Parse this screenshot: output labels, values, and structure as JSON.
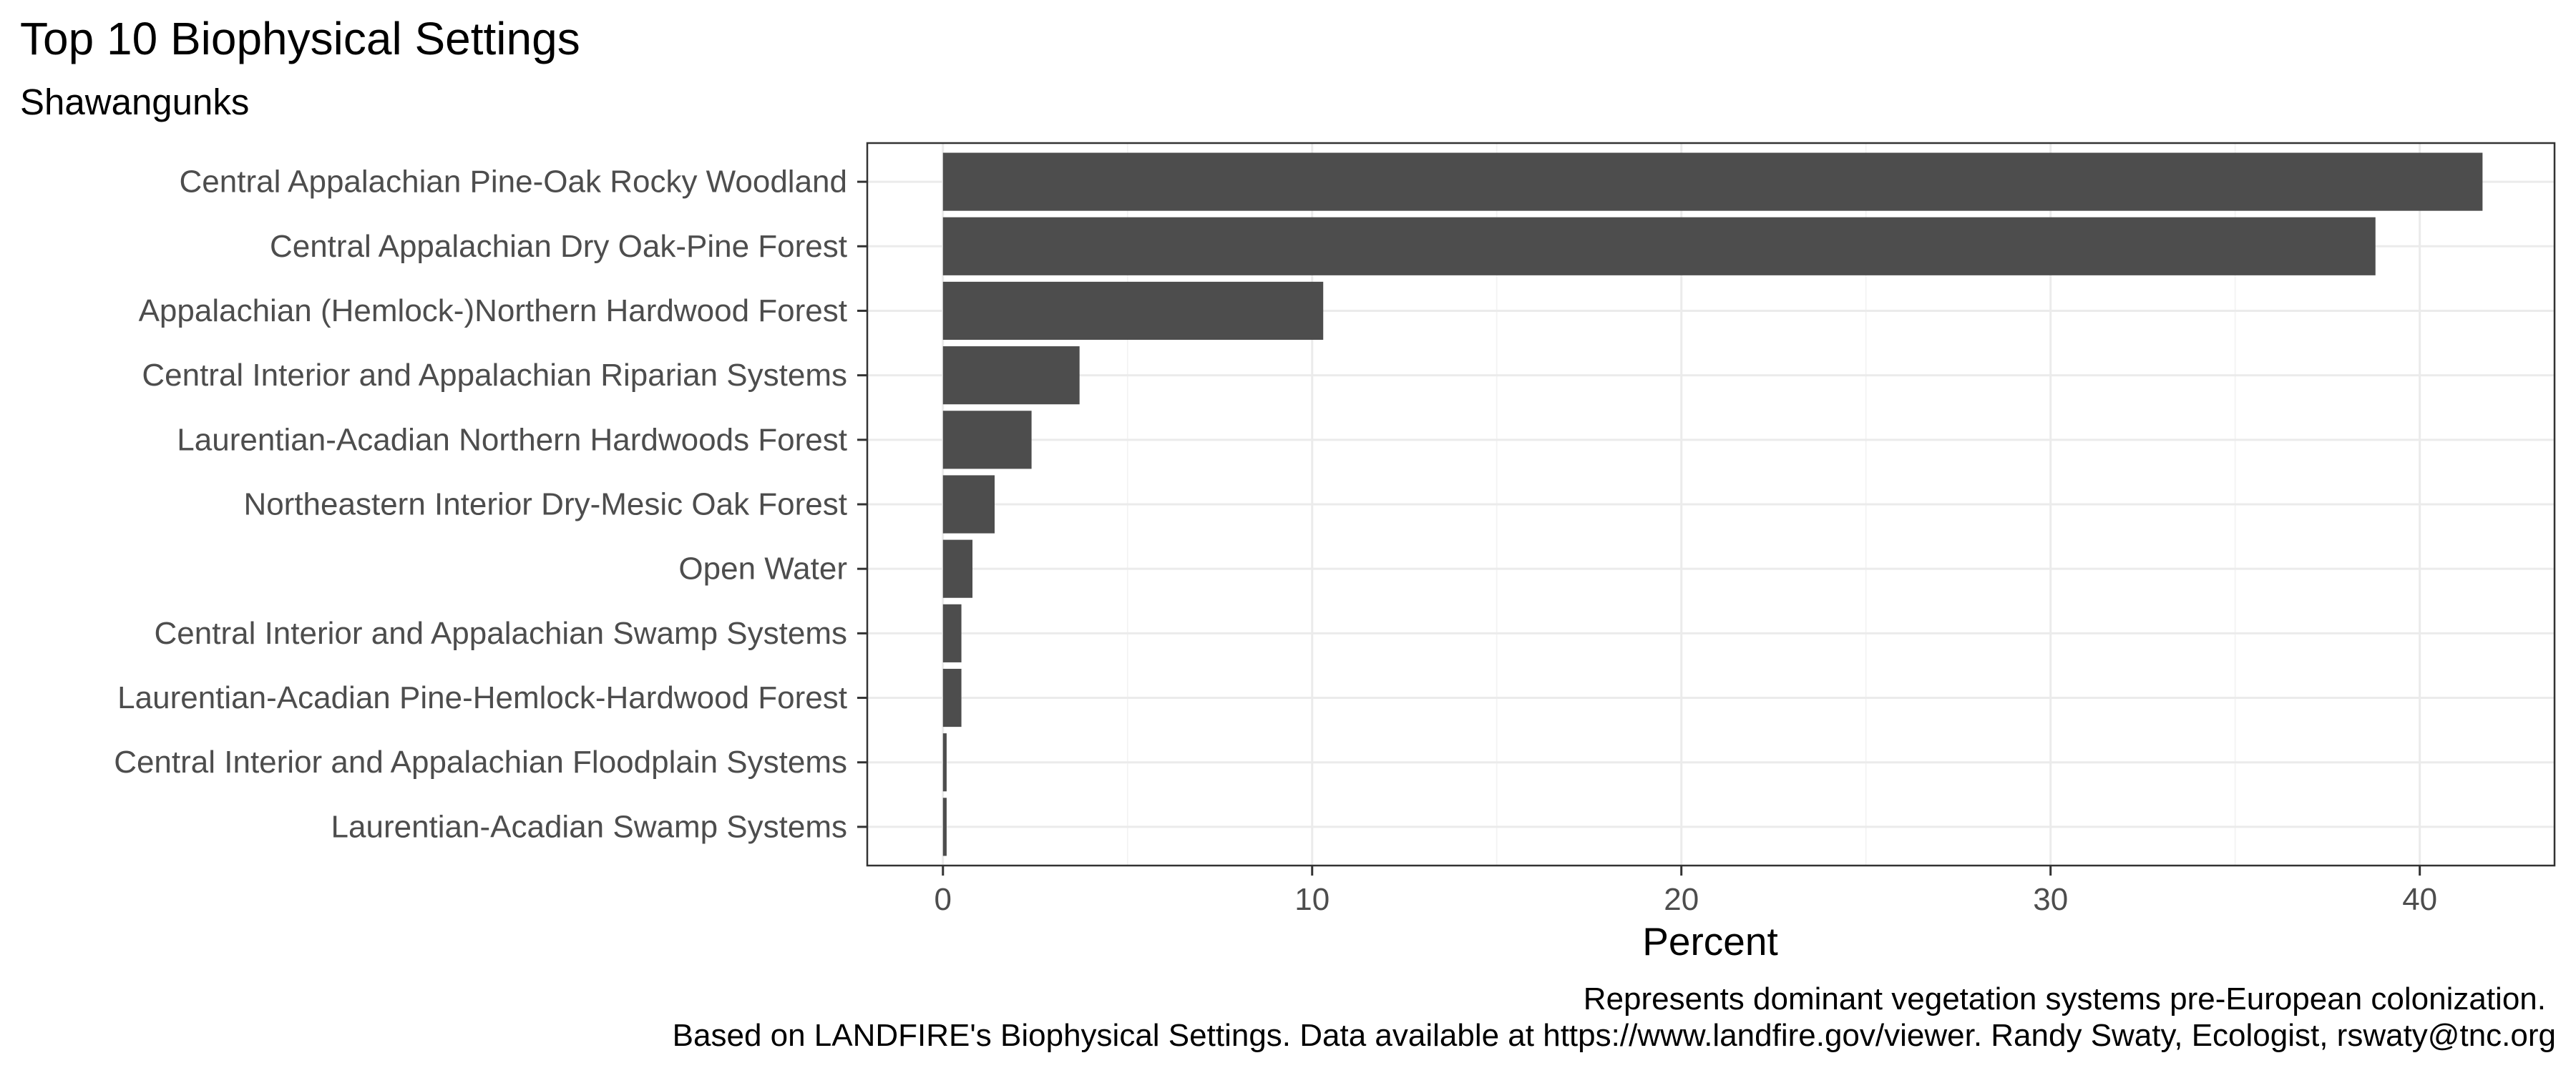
{
  "chart_data": {
    "type": "bar",
    "orientation": "horizontal",
    "title": "Top 10 Biophysical Settings",
    "subtitle": "Shawangunks",
    "xlabel": "Percent",
    "ylabel": "",
    "xlim": [
      -2.05,
      43.65
    ],
    "xticks": [
      0,
      10,
      20,
      30,
      40
    ],
    "grid": true,
    "legend": "none",
    "bar_color": "#4d4d4d",
    "categories": [
      "Central Appalachian Pine-Oak Rocky Woodland",
      "Central Appalachian Dry Oak-Pine Forest",
      "Appalachian (Hemlock-)Northern Hardwood Forest",
      "Central Interior and Appalachian Riparian Systems",
      "Laurentian-Acadian Northern Hardwoods Forest",
      "Northeastern Interior Dry-Mesic Oak Forest",
      "Open Water",
      "Central Interior and Appalachian Swamp Systems",
      "Laurentian-Acadian Pine-Hemlock-Hardwood Forest",
      "Central Interior and Appalachian Floodplain Systems",
      "Laurentian-Acadian Swamp Systems"
    ],
    "values": [
      41.7,
      38.8,
      10.3,
      3.7,
      2.4,
      1.4,
      0.8,
      0.5,
      0.5,
      0.1,
      0.1
    ],
    "caption": [
      "Represents dominant vegetation systems pre-European colonization.",
      "Based on LANDFIRE's Biophysical Settings.  Data available at https://www.landfire.gov/viewer. Randy Swaty, Ecologist, rswaty@tnc.org"
    ]
  }
}
